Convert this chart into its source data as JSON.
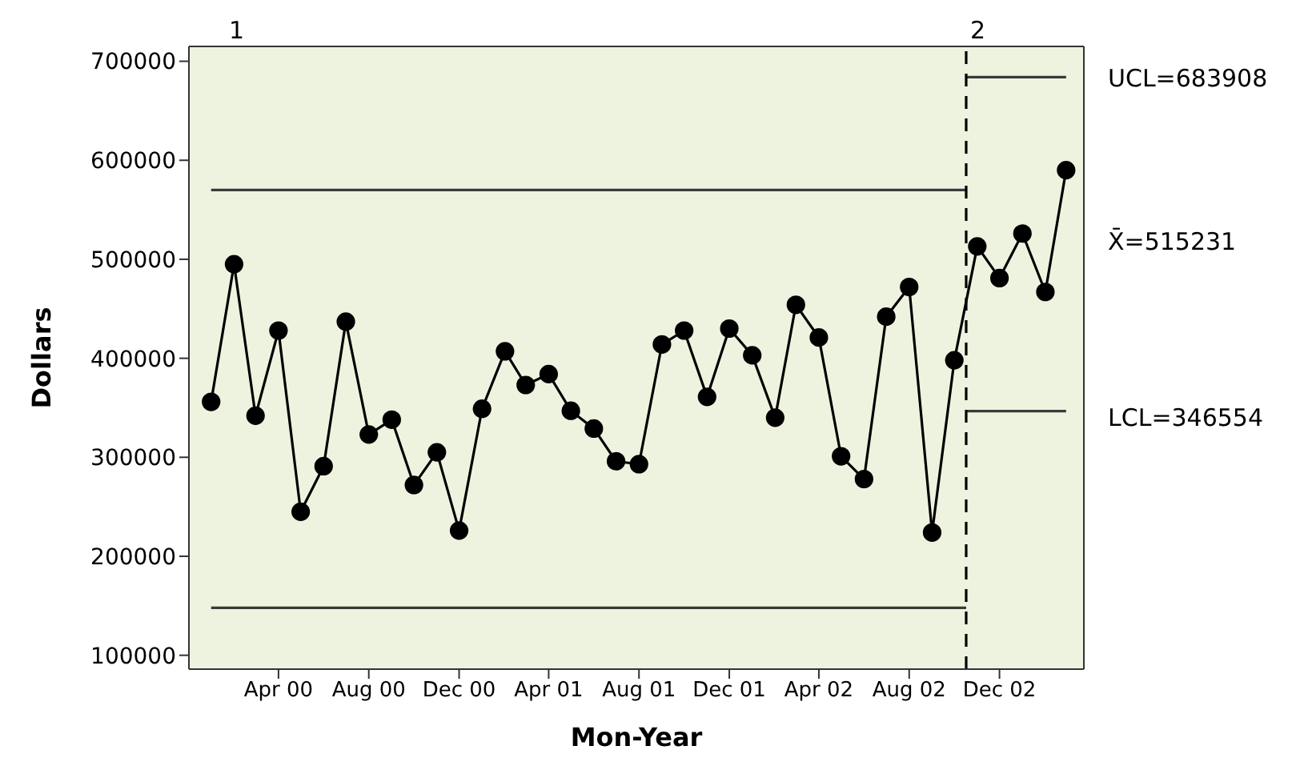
{
  "chart_data": {
    "type": "line",
    "xlabel": "Mon-Year",
    "ylabel": "Dollars",
    "xlim": [
      "1999-12-02",
      "2003-03-25"
    ],
    "ylim": [
      86000,
      715000
    ],
    "yticks": [
      100000,
      200000,
      300000,
      400000,
      500000,
      600000,
      700000
    ],
    "xticks": [
      {
        "value": "2000-04",
        "label": "Apr 00"
      },
      {
        "value": "2000-08",
        "label": "Aug 00"
      },
      {
        "value": "2000-12",
        "label": "Dec 00"
      },
      {
        "value": "2001-04",
        "label": "Apr 01"
      },
      {
        "value": "2001-08",
        "label": "Aug 01"
      },
      {
        "value": "2001-12",
        "label": "Dec 01"
      },
      {
        "value": "2002-04",
        "label": "Apr 02"
      },
      {
        "value": "2002-08",
        "label": "Aug 02"
      },
      {
        "value": "2002-12",
        "label": "Dec 02"
      }
    ],
    "grid": false,
    "series": [
      {
        "type": "line",
        "color": "#000000",
        "marker": "circle",
        "x": [
          "2000-01",
          "2000-02",
          "2000-03",
          "2000-04",
          "2000-05",
          "2000-06",
          "2000-07",
          "2000-08",
          "2000-09",
          "2000-10",
          "2000-11",
          "2000-12",
          "2001-01",
          "2001-02",
          "2001-03",
          "2001-04",
          "2001-05",
          "2001-06",
          "2001-07",
          "2001-08",
          "2001-09",
          "2001-10",
          "2001-11",
          "2001-12",
          "2002-01",
          "2002-02",
          "2002-03",
          "2002-04",
          "2002-05",
          "2002-06",
          "2002-07",
          "2002-08",
          "2002-09",
          "2002-10",
          "2002-11",
          "2002-12",
          "2003-01",
          "2003-02",
          "2003-03"
        ],
        "values": [
          356000,
          495000,
          342000,
          428000,
          245000,
          291000,
          437000,
          323000,
          338000,
          272000,
          305000,
          226000,
          349000,
          407000,
          373000,
          384000,
          347000,
          329000,
          296000,
          293000,
          414000,
          428000,
          361000,
          430000,
          403000,
          340000,
          454000,
          421000,
          301000,
          278000,
          442000,
          472000,
          224000,
          398000,
          513000,
          481000,
          526000,
          467000,
          590000
        ]
      },
      {
        "type": "line",
        "color": "#3a3a3a",
        "marker": "none",
        "x": [
          "2000-01",
          "2002-10-17"
        ],
        "values": [
          570000,
          570000
        ]
      },
      {
        "type": "line",
        "color": "#3a3a3a",
        "marker": "none",
        "x": [
          "2000-01",
          "2002-10-17"
        ],
        "values": [
          148000,
          148000
        ]
      },
      {
        "type": "line",
        "color": "#3a3a3a",
        "marker": "none",
        "x": [
          "2002-10-17",
          "2003-03"
        ],
        "values": [
          683908,
          683908
        ]
      },
      {
        "type": "line",
        "color": "#3a3a3a",
        "marker": "none",
        "x": [
          "2002-10-17",
          "2003-03"
        ],
        "values": [
          346554,
          346554
        ]
      }
    ],
    "ref_lines": [
      {
        "axis": "x",
        "value": "2002-10-17",
        "color": "#000000",
        "line_style": "dashed"
      }
    ],
    "annotations": [
      "1",
      "2",
      "UCL=683908",
      "X̄=515231",
      "LCL=346554"
    ]
  }
}
